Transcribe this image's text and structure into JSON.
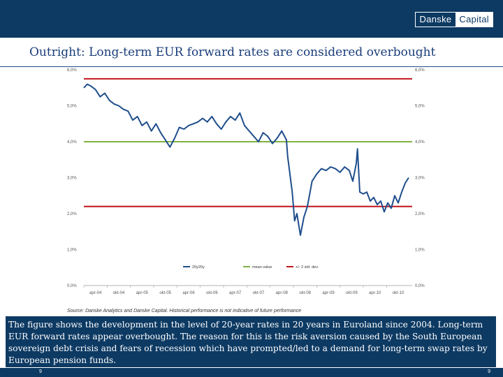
{
  "header": {
    "logo_left": "Danske",
    "logo_right": "Capital",
    "title": "Outright: Long-term EUR forward rates are considered overbought"
  },
  "source_note": "Source: Danske Analytics and Danske Capital. Historical performance is not indicative of future performance",
  "description": "The figure shows the development in the level of 20-year rates in 20 years in Euroland since 2004. Long-term EUR forward rates appear overbought. The reason for this is the risk aversion caused by the South European sovereign debt crisis and fears of recession which have prompted/led to a demand for long-term swap rates by European pension funds.",
  "page_left": "9",
  "page_right": "9",
  "colors": {
    "brand": "#0d3a63",
    "series": "#1f4e8c",
    "mean": "#7fb241",
    "band": "#c0151b"
  },
  "chart_data": {
    "type": "line",
    "ylim": [
      0,
      6
    ],
    "y_ticks": [
      0,
      1,
      2,
      3,
      4,
      5,
      6
    ],
    "y_tick_labels": [
      "0,0%",
      "1,0%",
      "2,0%",
      "3,0%",
      "4,0%",
      "5,0%",
      "6,0%"
    ],
    "x_tick_labels": [
      "apr-04",
      "okt-04",
      "apr-05",
      "okt-05",
      "apr-06",
      "okt-06",
      "apr-07",
      "okt-07",
      "apr-08",
      "okt-08",
      "apr-09",
      "okt-09",
      "apr-10",
      "okt-10"
    ],
    "x_range": [
      0,
      14.1
    ],
    "series": [
      {
        "name": "20y20y",
        "x": [
          0,
          0.15,
          0.3,
          0.5,
          0.7,
          0.9,
          1.1,
          1.3,
          1.5,
          1.7,
          1.9,
          2.1,
          2.3,
          2.5,
          2.7,
          2.9,
          3.1,
          3.3,
          3.5,
          3.7,
          3.9,
          4.1,
          4.3,
          4.5,
          4.7,
          4.9,
          5.1,
          5.3,
          5.5,
          5.7,
          5.9,
          6.1,
          6.3,
          6.5,
          6.7,
          6.9,
          7.1,
          7.3,
          7.5,
          7.7,
          7.9,
          8.1,
          8.3,
          8.5,
          8.7,
          8.75,
          8.85,
          8.95,
          9.05,
          9.15,
          9.3,
          9.45,
          9.6,
          9.8,
          10.0,
          10.2,
          10.4,
          10.6,
          10.8,
          11.0,
          11.2,
          11.4,
          11.55,
          11.7,
          11.75,
          11.85,
          12.0,
          12.15,
          12.3,
          12.45,
          12.6,
          12.75,
          12.9,
          13.05,
          13.2,
          13.35,
          13.5,
          13.65,
          13.8,
          13.95
        ],
        "values": [
          5.5,
          5.6,
          5.55,
          5.45,
          5.25,
          5.35,
          5.15,
          5.05,
          5.0,
          4.9,
          4.85,
          4.6,
          4.7,
          4.45,
          4.55,
          4.3,
          4.5,
          4.25,
          4.05,
          3.85,
          4.1,
          4.4,
          4.35,
          4.45,
          4.5,
          4.55,
          4.65,
          4.55,
          4.7,
          4.5,
          4.35,
          4.55,
          4.7,
          4.6,
          4.8,
          4.45,
          4.3,
          4.15,
          4.0,
          4.25,
          4.15,
          3.95,
          4.1,
          4.3,
          4.05,
          3.6,
          3.1,
          2.6,
          1.8,
          2.0,
          1.4,
          1.9,
          2.2,
          2.9,
          3.1,
          3.25,
          3.2,
          3.3,
          3.25,
          3.15,
          3.3,
          3.2,
          2.9,
          3.4,
          3.8,
          2.6,
          2.55,
          2.6,
          2.35,
          2.45,
          2.25,
          2.35,
          2.05,
          2.3,
          2.15,
          2.5,
          2.3,
          2.6,
          2.85,
          3.0
        ]
      },
      {
        "name": "mean value",
        "constant": 4.0
      },
      {
        "name": "+/- 2 std. dev.",
        "constant_upper": 5.75,
        "constant_lower": 2.2
      }
    ]
  }
}
